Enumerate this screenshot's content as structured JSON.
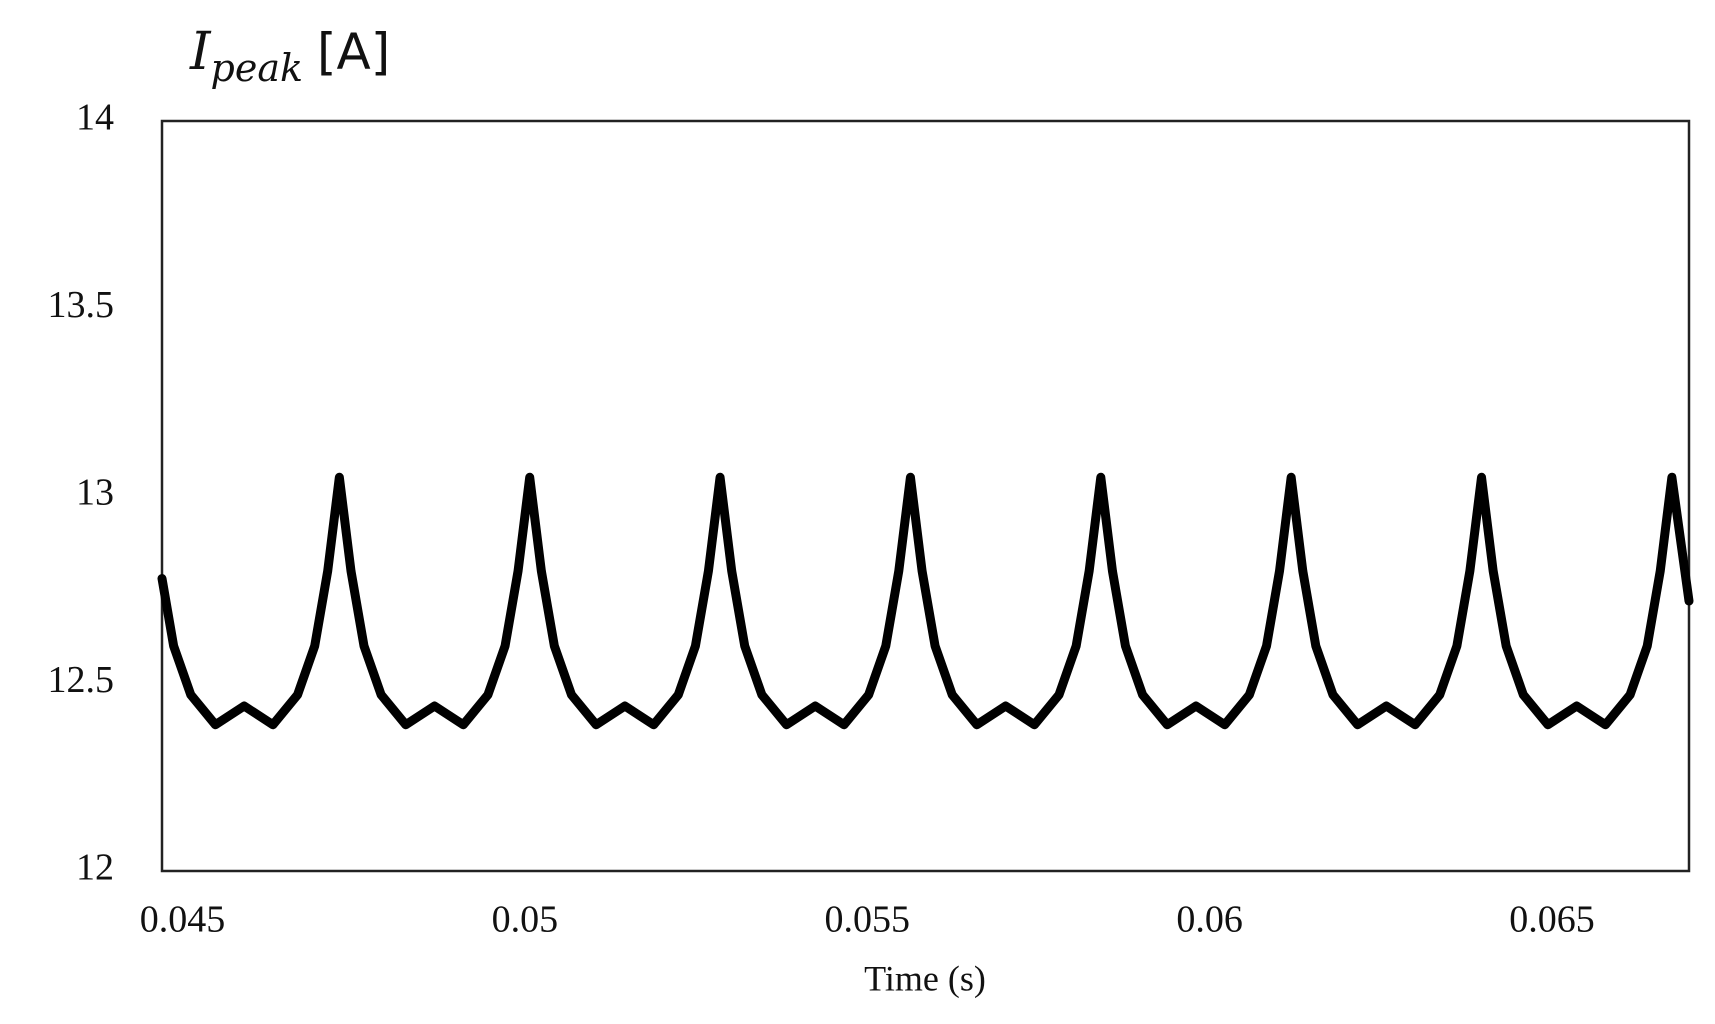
{
  "chart_data": {
    "type": "line",
    "ylabel": "I",
    "ylabel_subscript": "peak",
    "ylabel_unit": "[A]",
    "xlabel": "Time (s)",
    "xlim": [
      0.0447,
      0.067
    ],
    "ylim": [
      12,
      14
    ],
    "xticks": [
      0.045,
      0.05,
      0.055,
      0.06,
      0.065
    ],
    "yticks": [
      12,
      12.5,
      13,
      13.5,
      14
    ],
    "grid": false,
    "color": "#000000",
    "x": [
      0.0447,
      0.04487,
      0.04512,
      0.04548,
      0.0459,
      0.04632,
      0.04668,
      0.04693,
      0.04712,
      0.04729,
      0.04746,
      0.04765,
      0.0479,
      0.04826,
      0.04868,
      0.0491,
      0.04946,
      0.04971,
      0.0499,
      0.05007,
      0.05024,
      0.05043,
      0.05068,
      0.05104,
      0.05146,
      0.05188,
      0.05224,
      0.05249,
      0.05268,
      0.05285,
      0.05302,
      0.05321,
      0.05346,
      0.05382,
      0.05424,
      0.05466,
      0.05502,
      0.05527,
      0.05546,
      0.05563,
      0.0558,
      0.05599,
      0.05624,
      0.0566,
      0.05702,
      0.05744,
      0.0578,
      0.05805,
      0.05824,
      0.05841,
      0.05858,
      0.05877,
      0.05902,
      0.05938,
      0.0598,
      0.06022,
      0.06058,
      0.06083,
      0.06102,
      0.06119,
      0.06136,
      0.06155,
      0.0618,
      0.06216,
      0.06258,
      0.063,
      0.06336,
      0.06361,
      0.0638,
      0.06397,
      0.06414,
      0.06433,
      0.06458,
      0.06494,
      0.06536,
      0.06578,
      0.06614,
      0.06639,
      0.06658,
      0.06675,
      0.067
    ],
    "values": [
      12.78,
      12.6,
      12.47,
      12.39,
      12.44,
      12.39,
      12.47,
      12.6,
      12.8,
      13.05,
      12.8,
      12.6,
      12.47,
      12.39,
      12.44,
      12.39,
      12.47,
      12.6,
      12.8,
      13.05,
      12.8,
      12.6,
      12.47,
      12.39,
      12.44,
      12.39,
      12.47,
      12.6,
      12.8,
      13.05,
      12.8,
      12.6,
      12.47,
      12.39,
      12.44,
      12.39,
      12.47,
      12.6,
      12.8,
      13.05,
      12.8,
      12.6,
      12.47,
      12.39,
      12.44,
      12.39,
      12.47,
      12.6,
      12.8,
      13.05,
      12.8,
      12.6,
      12.47,
      12.39,
      12.44,
      12.39,
      12.47,
      12.6,
      12.8,
      13.05,
      12.8,
      12.6,
      12.47,
      12.39,
      12.44,
      12.39,
      12.47,
      12.6,
      12.8,
      13.05,
      12.8,
      12.6,
      12.47,
      12.39,
      12.44,
      12.39,
      12.47,
      12.6,
      12.8,
      13.05,
      12.72
    ]
  }
}
